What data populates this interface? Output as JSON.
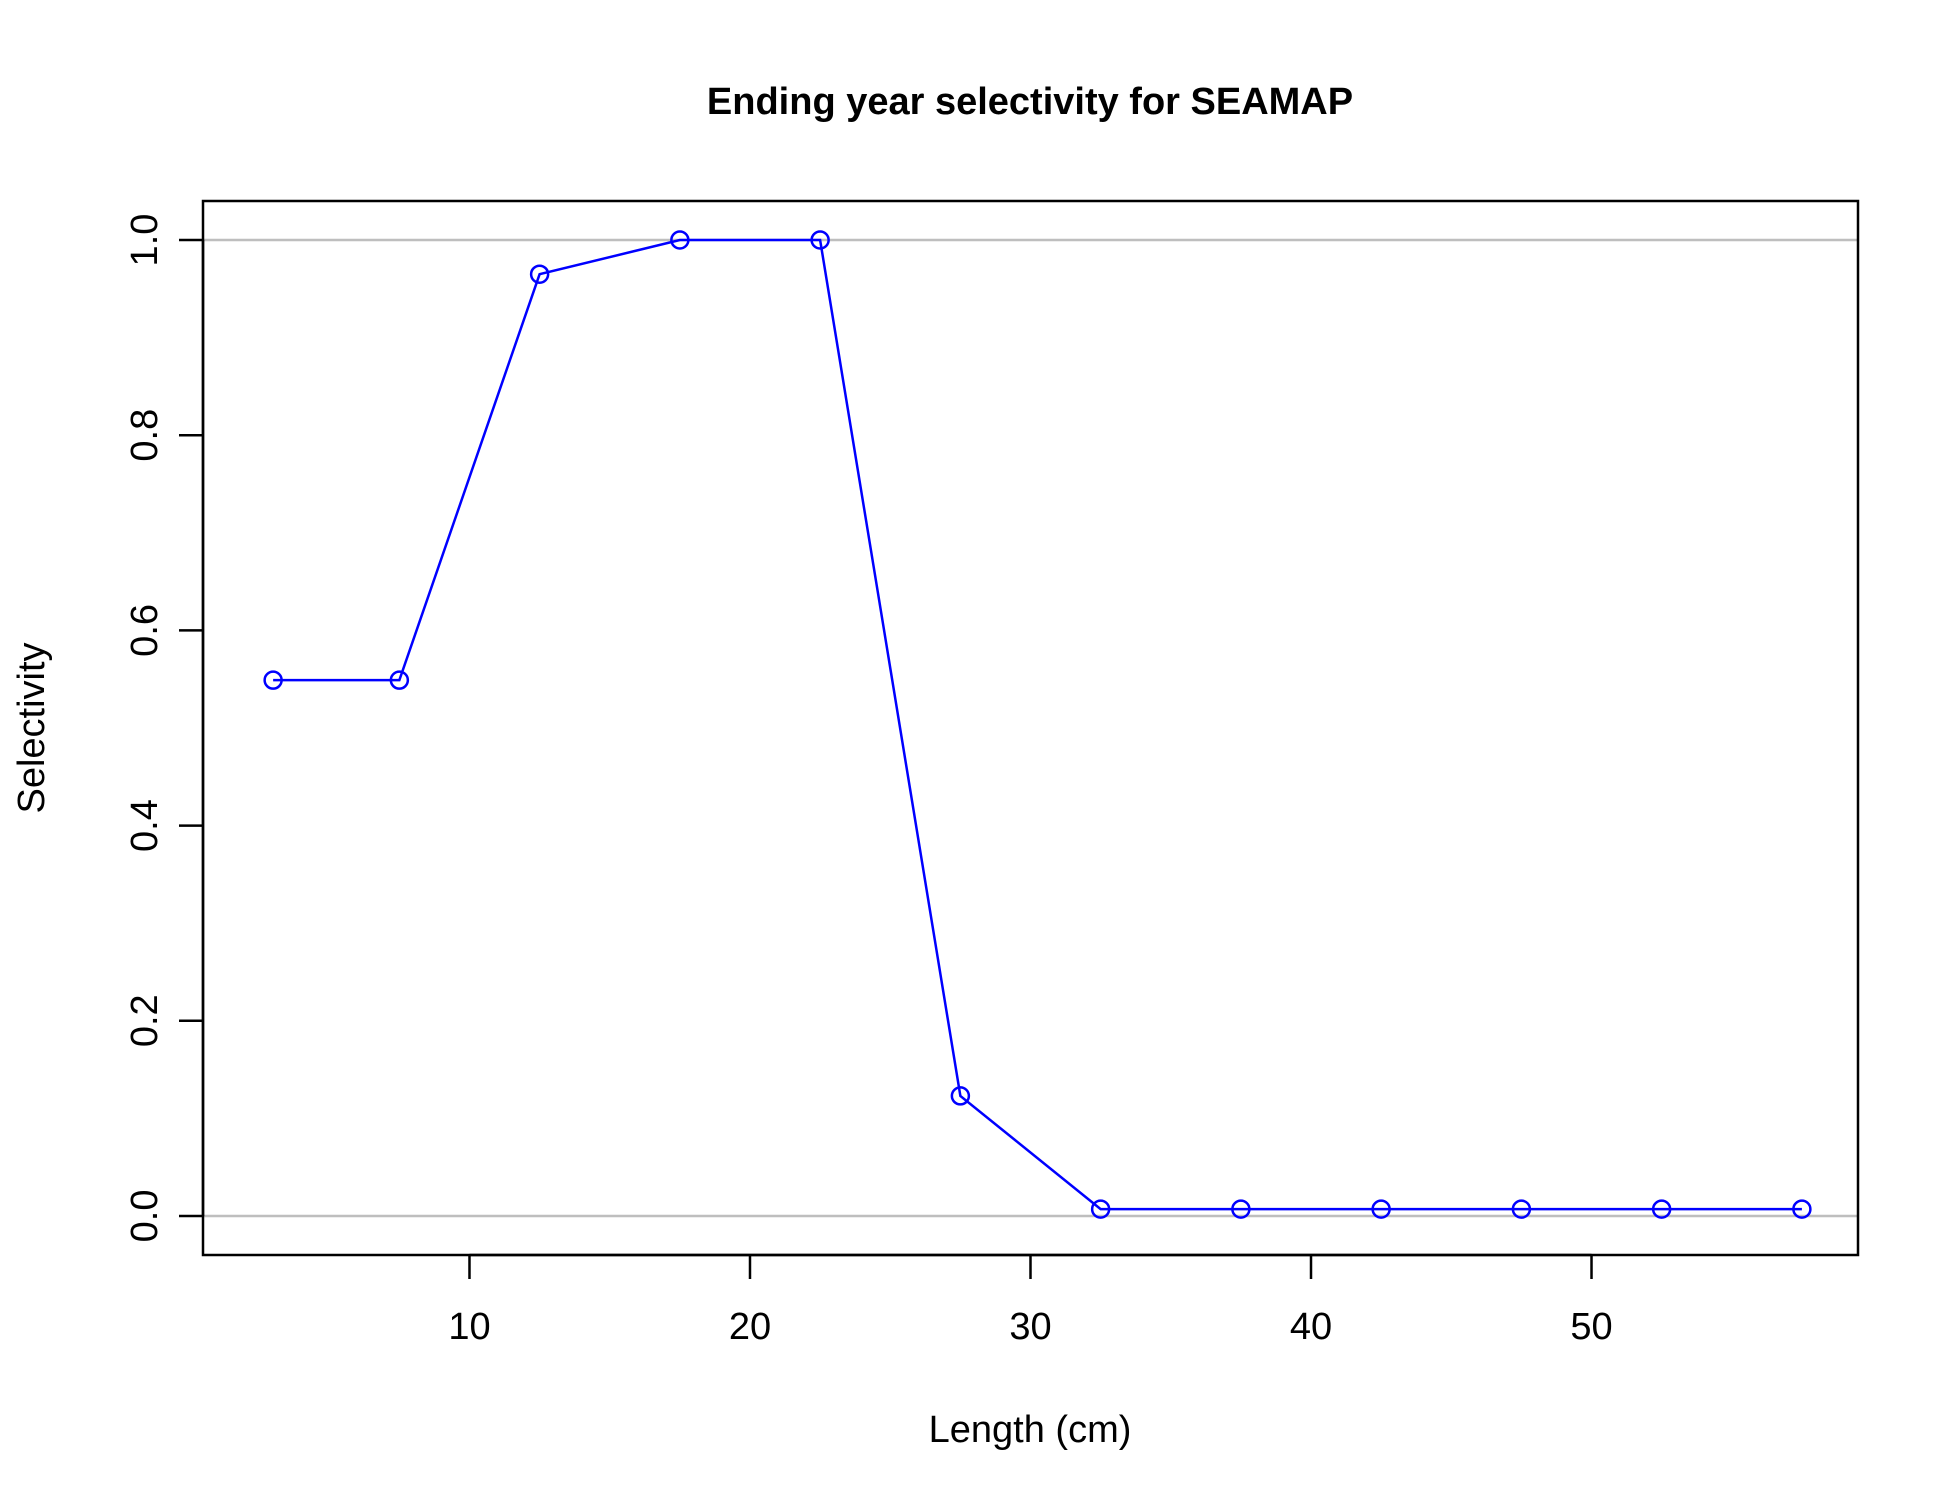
{
  "chart_data": {
    "type": "line",
    "title": "Ending year selectivity for SEAMAP",
    "xlabel": "Length (cm)",
    "ylabel": "Selectivity",
    "xlim": [
      0.5,
      59.5
    ],
    "ylim": [
      -0.04,
      1.04
    ],
    "x_ticks": [
      10,
      20,
      30,
      40,
      50
    ],
    "x_tick_labels": [
      "10",
      "20",
      "30",
      "40",
      "50"
    ],
    "y_ticks": [
      0.0,
      0.2,
      0.4,
      0.6,
      0.8,
      1.0
    ],
    "y_tick_labels": [
      "0.0",
      "0.2",
      "0.4",
      "0.6",
      "0.8",
      "1.0"
    ],
    "reference_lines": [
      0.0,
      1.0
    ],
    "grid": false,
    "series": [
      {
        "x": [
          3,
          7.5,
          12.5,
          17.5,
          22.5,
          27.5,
          32.5,
          37.5,
          42.5,
          47.5,
          52.5,
          57.5
        ],
        "values": [
          0.549,
          0.549,
          0.965,
          1.0,
          1.0,
          0.123,
          0.007,
          0.007,
          0.007,
          0.007,
          0.007,
          0.007
        ],
        "color": "#0000ff",
        "marker": "open-circle"
      }
    ],
    "reference_line_color": "#bebebe"
  }
}
